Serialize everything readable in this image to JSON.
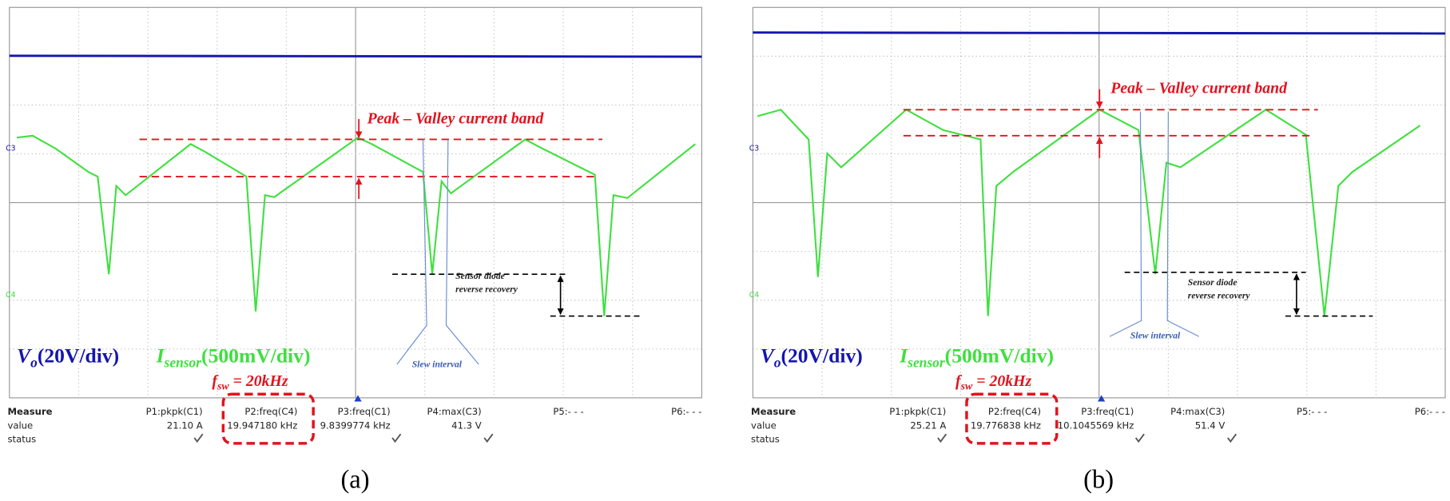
{
  "panels": [
    {
      "label": "(a)",
      "channels": [
        "C3",
        "C4"
      ],
      "legend": {
        "vo_symbol": "V",
        "vo_subscript": "o",
        "vo_scale": "(20V/div)",
        "isensor_symbol": "I",
        "isensor_subscript": "sensor",
        "isensor_scale": "(500mV/div)",
        "fsw_symbol": "f",
        "fsw_subscript": "sw",
        "fsw_value": " = 20kHz"
      },
      "annotations": {
        "peak_valley": "Peak – Valley current band",
        "diode_line1": "Sensor diode",
        "diode_line2": "reverse recovery",
        "slew": "Slew interval"
      },
      "measure": {
        "headers": [
          "Measure",
          "P1:pkpk(C1)",
          "P2:freq(C4)",
          "P3:freq(C1)",
          "P4:max(C3)",
          "P5:- - -",
          "P6:- - -"
        ],
        "value_row": [
          "value",
          "21.10 A",
          "19.947180 kHz",
          "9.8399774 kHz",
          "41.3 V"
        ],
        "status_label": "status"
      }
    },
    {
      "label": "(b)",
      "channels": [
        "C3",
        "C4"
      ],
      "legend": {
        "vo_symbol": "V",
        "vo_subscript": "o",
        "vo_scale": "(20V/div)",
        "isensor_symbol": "I",
        "isensor_subscript": "sensor",
        "isensor_scale": "(500mV/div)",
        "fsw_symbol": "f",
        "fsw_subscript": "sw",
        "fsw_value": " = 20kHz"
      },
      "annotations": {
        "peak_valley": "Peak – Valley current band",
        "diode_line1": "Sensor diode",
        "diode_line2": "reverse recovery",
        "slew": "Slew interval"
      },
      "measure": {
        "headers": [
          "Measure",
          "P1:pkpk(C1)",
          "P2:freq(C4)",
          "P3:freq(C1)",
          "P4:max(C3)",
          "P5:- - -",
          "P6:- - -"
        ],
        "value_row": [
          "value",
          "25.21 A",
          "19.776838 kHz",
          "10.1045569 kHz",
          "51.4 V"
        ],
        "status_label": "status"
      }
    }
  ]
}
